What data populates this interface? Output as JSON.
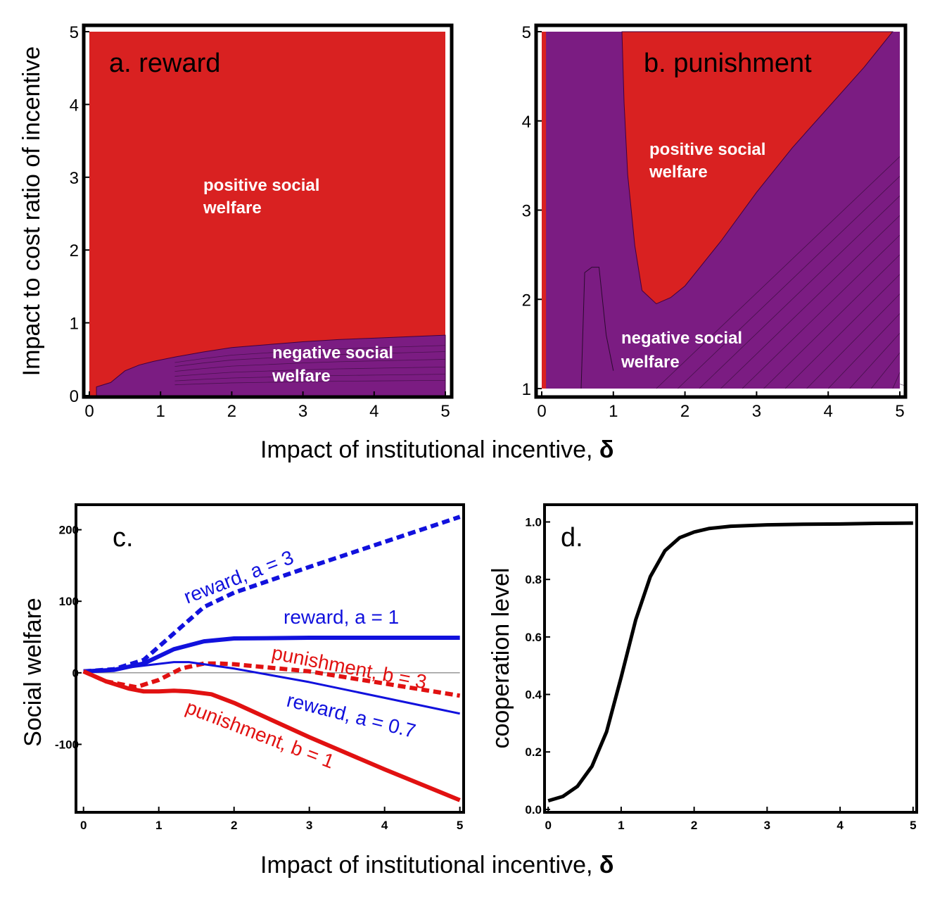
{
  "chart_data": [
    {
      "id": "a",
      "type": "contour",
      "title": "a. reward",
      "ylabel": "Impact to cost ratio of incentive",
      "xlabel": "",
      "xlim": [
        0,
        5
      ],
      "ylim": [
        0,
        5
      ],
      "xticks": [
        "0",
        "1",
        "2",
        "3",
        "4",
        "5"
      ],
      "yticks": [
        "0",
        "1",
        "2",
        "3",
        "4",
        "5"
      ],
      "colors": {
        "positive": "#d92121",
        "negative": "#7b1c82"
      },
      "regions": {
        "positive": [
          "positive social",
          "welfare"
        ],
        "negative": [
          "negative social",
          "welfare"
        ]
      },
      "boundary": [
        [
          0.1,
          0.12
        ],
        [
          0.3,
          0.18
        ],
        [
          0.5,
          0.34
        ],
        [
          0.7,
          0.42
        ],
        [
          0.9,
          0.47
        ],
        [
          1.2,
          0.53
        ],
        [
          1.6,
          0.6
        ],
        [
          2,
          0.66
        ],
        [
          2.5,
          0.7
        ],
        [
          3,
          0.74
        ],
        [
          3.5,
          0.77
        ],
        [
          4,
          0.79
        ],
        [
          4.5,
          0.81
        ],
        [
          5,
          0.83
        ]
      ]
    },
    {
      "id": "b",
      "type": "contour",
      "title": "b. punishment",
      "ylabel": "",
      "xlabel": "",
      "xlim": [
        0,
        5
      ],
      "ylim": [
        1,
        5
      ],
      "xticks": [
        "0",
        "1",
        "2",
        "3",
        "4",
        "5"
      ],
      "yticks": [
        "1",
        "2",
        "3",
        "4",
        "5"
      ],
      "colors": {
        "positive": "#d92121",
        "negative": "#7b1c82"
      },
      "regions": {
        "positive": [
          "positive social",
          "welfare"
        ],
        "negative": [
          "negative social",
          "welfare"
        ]
      },
      "boundary": [
        [
          1.12,
          5
        ],
        [
          1.15,
          4.2
        ],
        [
          1.2,
          3.4
        ],
        [
          1.3,
          2.6
        ],
        [
          1.4,
          2.1
        ],
        [
          1.6,
          1.95
        ],
        [
          1.8,
          2.02
        ],
        [
          2,
          2.15
        ],
        [
          2.5,
          2.65
        ],
        [
          3,
          3.2
        ],
        [
          3.5,
          3.7
        ],
        [
          4,
          4.15
        ],
        [
          4.5,
          4.6
        ],
        [
          4.9,
          5
        ]
      ]
    },
    {
      "id": "c",
      "type": "line",
      "title": "c.",
      "ylabel": "Social welfare",
      "xlabel": "",
      "xlim": [
        -0.1,
        5.05
      ],
      "ylim": [
        -195,
        235
      ],
      "xticks": [
        "0",
        "1",
        "2",
        "3",
        "4",
        "5"
      ],
      "yticks": [
        "-100",
        "0",
        "100",
        "200"
      ],
      "series": [
        {
          "name": "reward, a = 3",
          "color": "#1111dd",
          "dash": true,
          "width": 6,
          "x": [
            0,
            0.4,
            0.8,
            1.2,
            1.6,
            2,
            3,
            4,
            5
          ],
          "y": [
            2,
            5,
            18,
            55,
            92,
            112,
            148,
            183,
            218
          ]
        },
        {
          "name": "reward, a = 1",
          "color": "#1111dd",
          "dash": false,
          "width": 6,
          "x": [
            0,
            0.4,
            0.8,
            1.2,
            1.6,
            2,
            3,
            4,
            5
          ],
          "y": [
            2,
            4,
            13,
            33,
            44,
            48,
            49,
            49,
            49
          ]
        },
        {
          "name": "punishment, b = 3",
          "color": "#e11111",
          "dash": true,
          "width": 6,
          "x": [
            0,
            0.3,
            0.7,
            1,
            1.3,
            1.6,
            1.8,
            2,
            3,
            4,
            5
          ],
          "y": [
            2,
            -12,
            -20,
            -10,
            6,
            13,
            13,
            12,
            2,
            -15,
            -32
          ]
        },
        {
          "name": "reward, a = 0.7",
          "color": "#1111dd",
          "dash": false,
          "width": 3,
          "x": [
            0,
            0.4,
            0.8,
            1.2,
            1.4,
            1.6,
            2,
            3,
            4,
            5
          ],
          "y": [
            2,
            5,
            10,
            15,
            15,
            12,
            6,
            -13,
            -35,
            -57
          ]
        },
        {
          "name": "punishment, b = 1",
          "color": "#e11111",
          "dash": false,
          "width": 6,
          "x": [
            0,
            0.3,
            0.6,
            0.8,
            1,
            1.2,
            1.4,
            1.7,
            2,
            3,
            4,
            5
          ],
          "y": [
            2,
            -12,
            -22,
            -26,
            -26,
            -25,
            -26,
            -30,
            -42,
            -90,
            -135,
            -178
          ]
        }
      ]
    },
    {
      "id": "d",
      "type": "line",
      "title": "d.",
      "ylabel": "cooperation level",
      "xlabel": "",
      "xlim": [
        -0.05,
        5.05
      ],
      "ylim": [
        -0.01,
        1.06
      ],
      "xticks": [
        "0",
        "1",
        "2",
        "3",
        "4",
        "5"
      ],
      "yticks": [
        "0.0",
        "0.2",
        "0.4",
        "0.6",
        "0.8",
        "1.0"
      ],
      "series": [
        {
          "name": "cooperation",
          "color": "#000000",
          "x": [
            0,
            0.2,
            0.4,
            0.6,
            0.8,
            1,
            1.2,
            1.4,
            1.6,
            1.8,
            2,
            2.2,
            2.5,
            3,
            3.5,
            4,
            4.5,
            5
          ],
          "y": [
            0.03,
            0.045,
            0.08,
            0.15,
            0.27,
            0.46,
            0.66,
            0.81,
            0.9,
            0.945,
            0.965,
            0.977,
            0.985,
            0.99,
            0.992,
            0.993,
            0.995,
            0.996
          ]
        }
      ]
    }
  ],
  "shared_xlabel": "Impact of institutional incentive, ",
  "shared_xlabel_symbol": "δ"
}
